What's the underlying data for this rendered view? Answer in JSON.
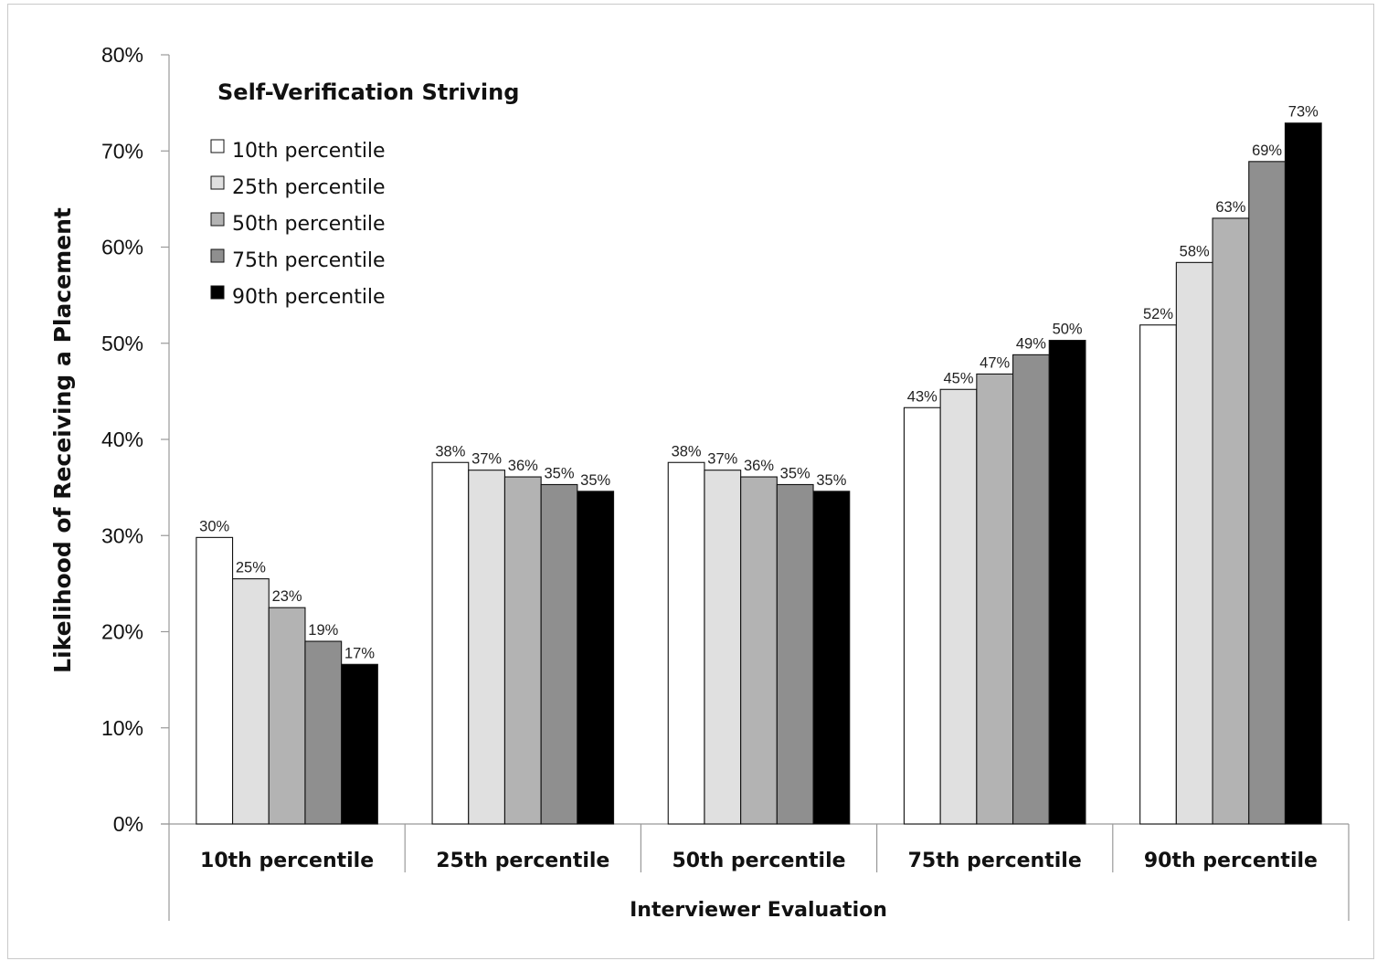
{
  "chart_data": {
    "type": "bar",
    "title": "",
    "xlabel": "Interviewer Evaluation",
    "ylabel": "Likelihood of Receiving a Placement",
    "ylim": [
      0,
      80
    ],
    "yticks": [
      "0%",
      "10%",
      "20%",
      "30%",
      "40%",
      "50%",
      "60%",
      "70%",
      "80%"
    ],
    "categories": [
      "10th percentile",
      "25th percentile",
      "50th percentile",
      "75th percentile",
      "90th percentile"
    ],
    "legend_title": "Self-Verification Striving",
    "legend_position": "top-left",
    "grid": false,
    "series": [
      {
        "name": "10th percentile",
        "color": "#ffffff",
        "values": [
          29.8,
          37.6,
          37.6,
          43.3,
          51.9
        ],
        "labels": [
          "30%",
          "38%",
          "38%",
          "43%",
          "52%"
        ]
      },
      {
        "name": "25th percentile",
        "color": "#e0e0e0",
        "values": [
          25.5,
          36.8,
          36.8,
          45.2,
          58.4
        ],
        "labels": [
          "25%",
          "37%",
          "37%",
          "45%",
          "58%"
        ]
      },
      {
        "name": "50th percentile",
        "color": "#b3b3b3",
        "values": [
          22.5,
          36.1,
          36.1,
          46.8,
          63.0
        ],
        "labels": [
          "23%",
          "36%",
          "36%",
          "47%",
          "63%"
        ]
      },
      {
        "name": "75th percentile",
        "color": "#8f8f8f",
        "values": [
          19.0,
          35.3,
          35.3,
          48.8,
          68.9
        ],
        "labels": [
          "19%",
          "35%",
          "35%",
          "49%",
          "69%"
        ]
      },
      {
        "name": "90th percentile",
        "color": "#000000",
        "values": [
          16.6,
          34.6,
          34.6,
          50.3,
          72.9
        ],
        "labels": [
          "17%",
          "35%",
          "35%",
          "50%",
          "73%"
        ]
      }
    ]
  }
}
